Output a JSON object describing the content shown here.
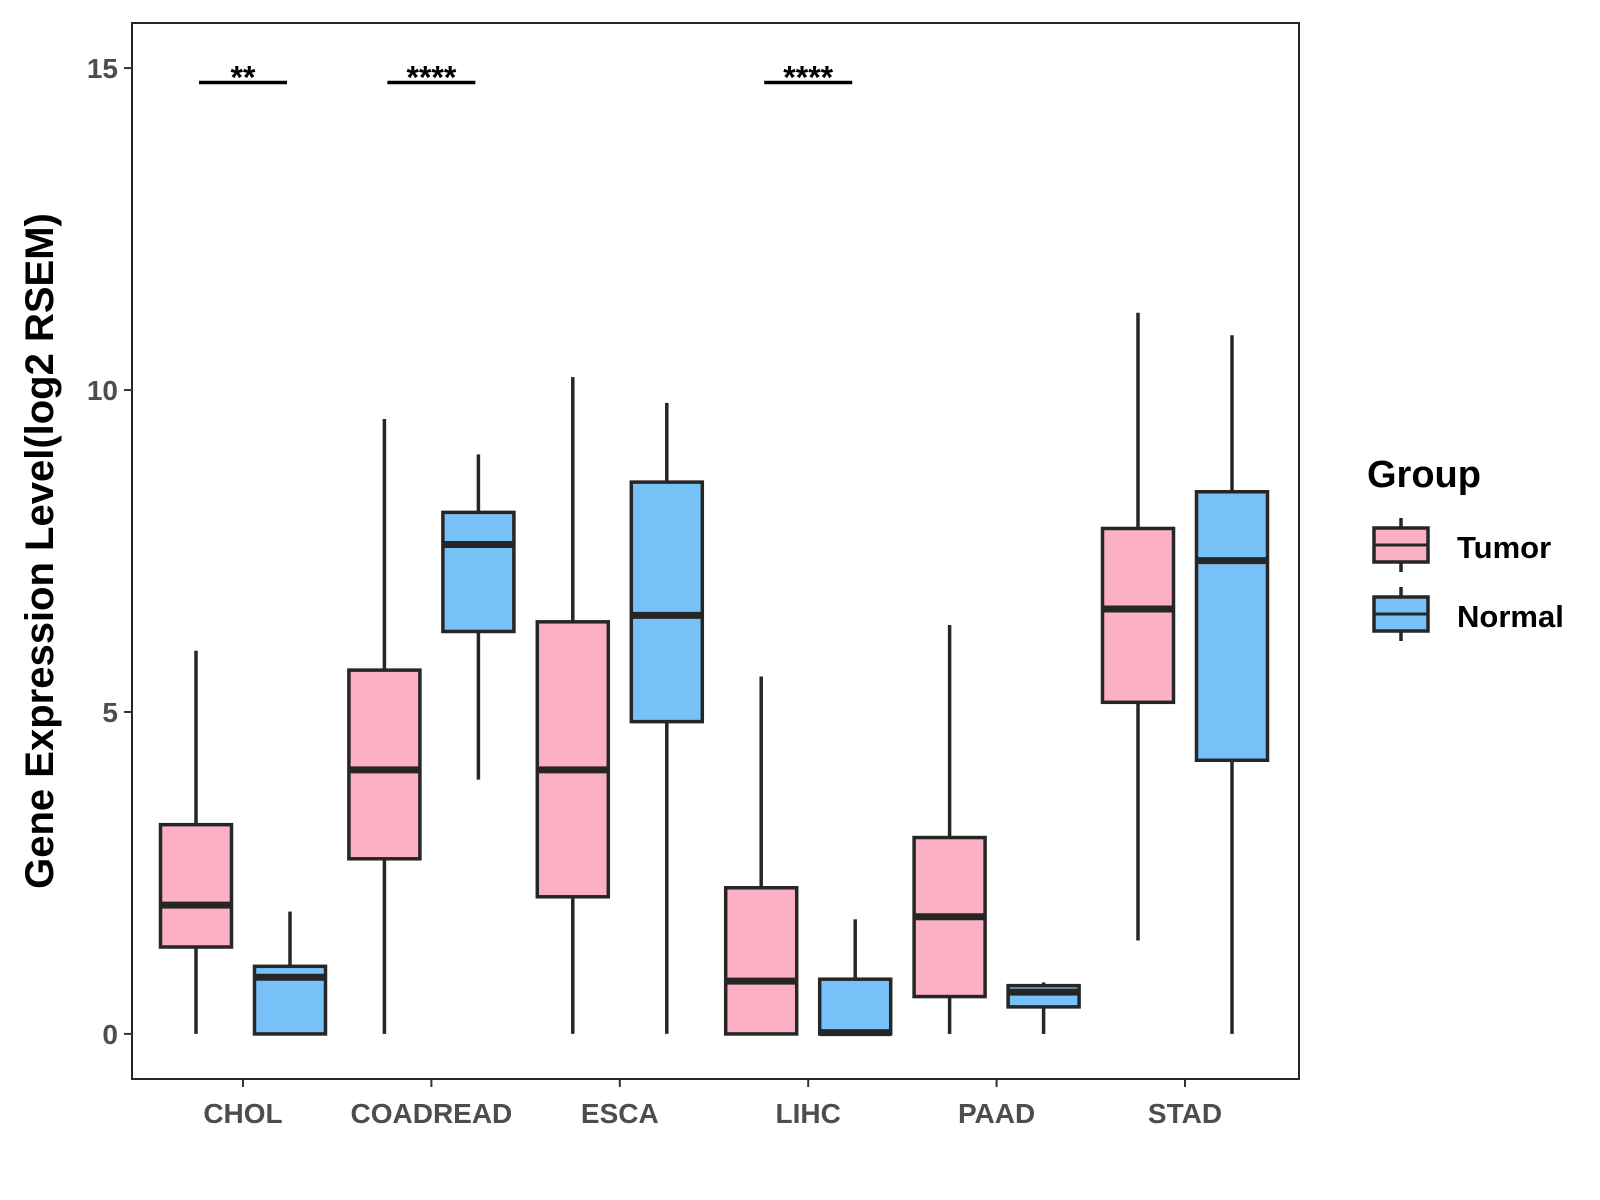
{
  "chart_data": {
    "type": "boxplot",
    "title": "",
    "xlabel": "",
    "ylabel": "Gene Expression Level(log2 RSEM)",
    "ylim": [
      -0.7,
      15.7
    ],
    "yticks": [
      0,
      5,
      10,
      15
    ],
    "grid": false,
    "legend": {
      "title": "Group",
      "placement": "right",
      "entries": [
        "Tumor",
        "Normal"
      ]
    },
    "colors": {
      "Tumor": "#fbb1c3",
      "Normal": "#78c1f8",
      "outline": "#262626"
    },
    "categories": [
      "CHOL",
      "COADREAD",
      "ESCA",
      "LIHC",
      "PAAD",
      "STAD"
    ],
    "series": [
      {
        "name": "Tumor",
        "boxes": [
          {
            "category": "CHOL",
            "whisker_low": 0.0,
            "q1": 1.35,
            "median": 2.0,
            "q3": 3.25,
            "whisker_high": 5.95
          },
          {
            "category": "COADREAD",
            "whisker_low": 0.0,
            "q1": 2.72,
            "median": 4.1,
            "q3": 5.65,
            "whisker_high": 9.55
          },
          {
            "category": "ESCA",
            "whisker_low": 0.0,
            "q1": 2.13,
            "median": 4.1,
            "q3": 6.4,
            "whisker_high": 10.2
          },
          {
            "category": "LIHC",
            "whisker_low": 0.0,
            "q1": 0.0,
            "median": 0.82,
            "q3": 2.27,
            "whisker_high": 5.55
          },
          {
            "category": "PAAD",
            "whisker_low": 0.0,
            "q1": 0.58,
            "median": 1.82,
            "q3": 3.05,
            "whisker_high": 6.35
          },
          {
            "category": "STAD",
            "whisker_low": 1.45,
            "q1": 5.15,
            "median": 6.6,
            "q3": 7.85,
            "whisker_high": 11.2
          }
        ]
      },
      {
        "name": "Normal",
        "boxes": [
          {
            "category": "CHOL",
            "whisker_low": 0.0,
            "q1": 0.0,
            "median": 0.88,
            "q3": 1.05,
            "whisker_high": 1.9
          },
          {
            "category": "COADREAD",
            "whisker_low": 3.95,
            "q1": 6.25,
            "median": 7.6,
            "q3": 8.1,
            "whisker_high": 9.0
          },
          {
            "category": "ESCA",
            "whisker_low": 0.0,
            "q1": 4.85,
            "median": 6.5,
            "q3": 8.57,
            "whisker_high": 9.8
          },
          {
            "category": "LIHC",
            "whisker_low": 0.0,
            "q1": 0.0,
            "median": 0.02,
            "q3": 0.85,
            "whisker_high": 1.78
          },
          {
            "category": "PAAD",
            "whisker_low": 0.0,
            "q1": 0.42,
            "median": 0.65,
            "q3": 0.75,
            "whisker_high": 0.8
          },
          {
            "category": "STAD",
            "whisker_low": 0.0,
            "q1": 4.25,
            "median": 7.35,
            "q3": 8.42,
            "whisker_high": 10.85
          }
        ]
      }
    ],
    "annotations": [
      {
        "category": "CHOL",
        "label": "**",
        "y": 14.9
      },
      {
        "category": "COADREAD",
        "label": "****",
        "y": 14.9
      },
      {
        "category": "LIHC",
        "label": "****",
        "y": 14.9
      }
    ]
  }
}
